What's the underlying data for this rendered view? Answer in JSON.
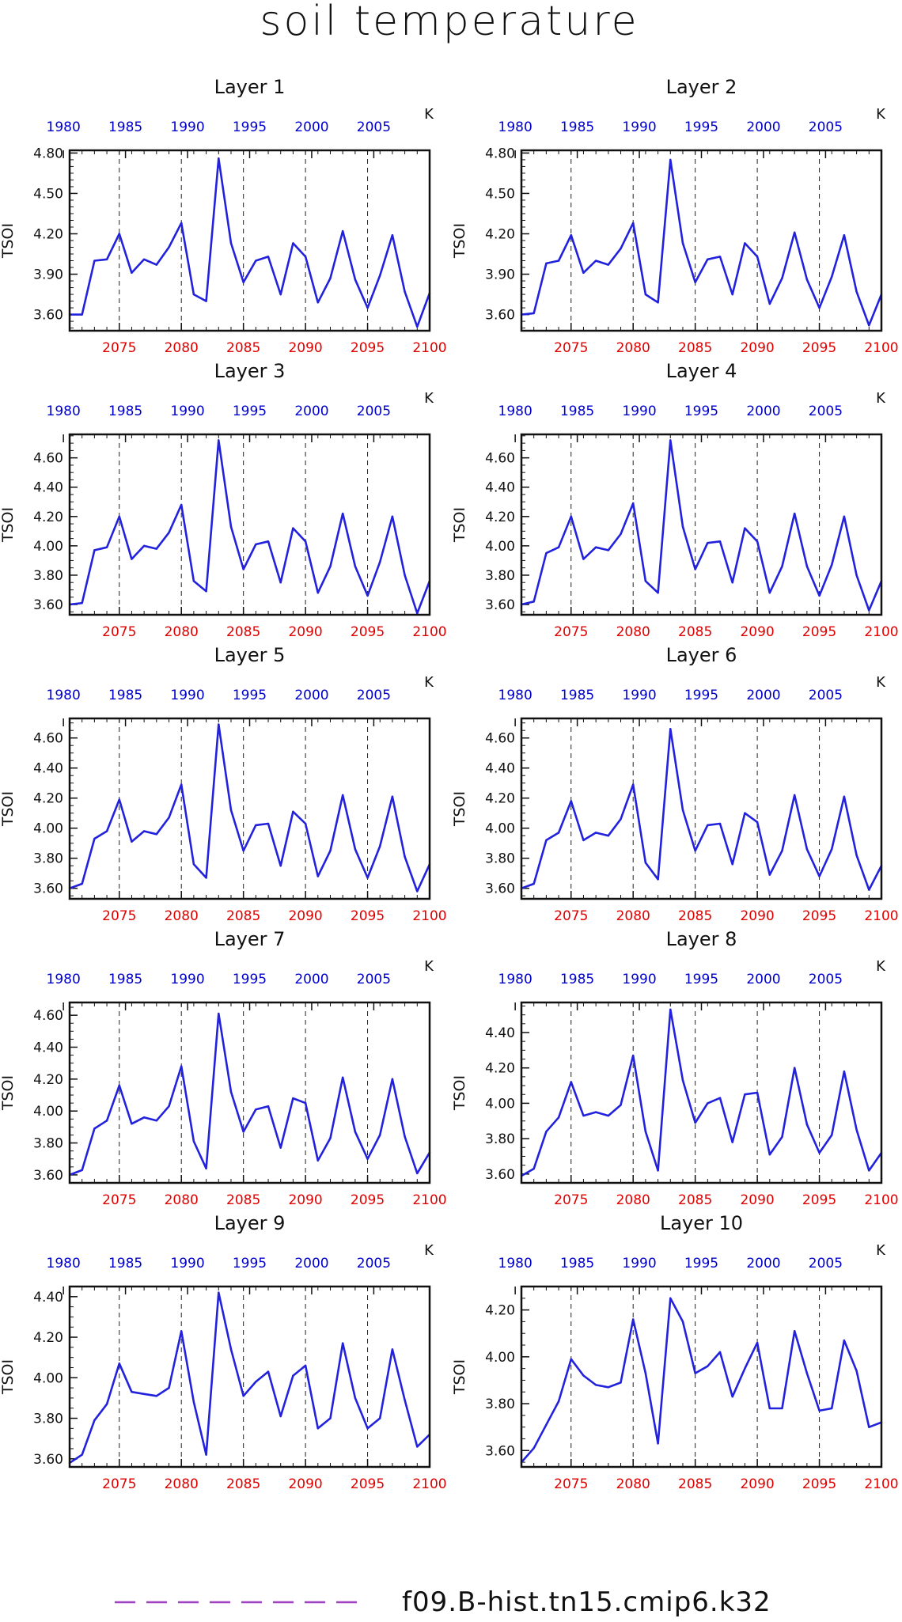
{
  "title": "soil temperature",
  "chart_data": {
    "type": "line",
    "layout": "5 rows x 2 columns",
    "grid": "vertical dashed lines at bottom-axis ticks",
    "ylabel": "TSOI",
    "units": "K",
    "bottom_axis_color": "#e00000",
    "top_axis_color": "#0000cc",
    "line_color": "#2222dd",
    "bottom_xlim": [
      2071,
      2100
    ],
    "bottom_ticks": [
      2075,
      2080,
      2085,
      2090,
      2095,
      2100
    ],
    "top_ticks": [
      1980,
      1985,
      1990,
      1995,
      2000,
      2005
    ],
    "x": [
      2071,
      2072,
      2073,
      2074,
      2075,
      2076,
      2077,
      2078,
      2079,
      2080,
      2081,
      2082,
      2083,
      2084,
      2085,
      2086,
      2087,
      2088,
      2089,
      2090,
      2091,
      2092,
      2093,
      2094,
      2095,
      2096,
      2097,
      2098,
      2099,
      2100
    ],
    "panels": [
      {
        "title": "Layer 1",
        "ylim": [
          3.48,
          4.82
        ],
        "yticks": [
          "3.60",
          "3.90",
          "4.20",
          "4.50",
          "4.80"
        ],
        "values": [
          3.6,
          3.6,
          4.0,
          4.01,
          4.2,
          3.91,
          4.01,
          3.97,
          4.1,
          4.28,
          3.75,
          3.7,
          4.76,
          4.13,
          3.84,
          4.0,
          4.03,
          3.75,
          4.13,
          4.03,
          3.69,
          3.87,
          4.22,
          3.86,
          3.65,
          3.89,
          4.19,
          3.77,
          3.51,
          3.76
        ]
      },
      {
        "title": "Layer 2",
        "ylim": [
          3.48,
          4.82
        ],
        "yticks": [
          "3.60",
          "3.90",
          "4.20",
          "4.50",
          "4.80"
        ],
        "values": [
          3.6,
          3.61,
          3.98,
          4.0,
          4.19,
          3.91,
          4.0,
          3.97,
          4.09,
          4.28,
          3.75,
          3.69,
          4.75,
          4.13,
          3.84,
          4.01,
          4.03,
          3.75,
          4.13,
          4.03,
          3.68,
          3.87,
          4.21,
          3.86,
          3.65,
          3.88,
          4.19,
          3.77,
          3.52,
          3.75
        ]
      },
      {
        "title": "Layer 3",
        "ylim": [
          3.53,
          4.76
        ],
        "yticks": [
          "3.60",
          "3.80",
          "4.00",
          "4.20",
          "4.40",
          "4.60"
        ],
        "values": [
          3.6,
          3.61,
          3.97,
          3.99,
          4.2,
          3.91,
          4.0,
          3.98,
          4.09,
          4.28,
          3.76,
          3.69,
          4.72,
          4.13,
          3.84,
          4.01,
          4.03,
          3.75,
          4.12,
          4.03,
          3.68,
          3.86,
          4.22,
          3.86,
          3.66,
          3.89,
          4.2,
          3.8,
          3.54,
          3.76
        ]
      },
      {
        "title": "Layer 4",
        "ylim": [
          3.53,
          4.76
        ],
        "yticks": [
          "3.60",
          "3.80",
          "4.00",
          "4.20",
          "4.40",
          "4.60"
        ],
        "values": [
          3.6,
          3.62,
          3.95,
          3.99,
          4.2,
          3.91,
          3.99,
          3.97,
          4.08,
          4.29,
          3.76,
          3.68,
          4.72,
          4.13,
          3.84,
          4.02,
          4.03,
          3.75,
          4.12,
          4.03,
          3.68,
          3.86,
          4.22,
          3.86,
          3.66,
          3.87,
          4.2,
          3.8,
          3.56,
          3.76
        ]
      },
      {
        "title": "Layer 5",
        "ylim": [
          3.53,
          4.73
        ],
        "yticks": [
          "3.60",
          "3.80",
          "4.00",
          "4.20",
          "4.40",
          "4.60"
        ],
        "values": [
          3.6,
          3.63,
          3.93,
          3.98,
          4.19,
          3.91,
          3.98,
          3.96,
          4.07,
          4.29,
          3.76,
          3.67,
          4.69,
          4.12,
          3.85,
          4.02,
          4.03,
          3.75,
          4.11,
          4.03,
          3.68,
          3.85,
          4.22,
          3.86,
          3.67,
          3.88,
          4.21,
          3.81,
          3.58,
          3.76
        ]
      },
      {
        "title": "Layer 6",
        "ylim": [
          3.53,
          4.73
        ],
        "yticks": [
          "3.60",
          "3.80",
          "4.00",
          "4.20",
          "4.40",
          "4.60"
        ],
        "values": [
          3.6,
          3.63,
          3.92,
          3.97,
          4.18,
          3.92,
          3.97,
          3.95,
          4.06,
          4.29,
          3.77,
          3.66,
          4.66,
          4.12,
          3.85,
          4.02,
          4.03,
          3.76,
          4.1,
          4.04,
          3.69,
          3.85,
          4.22,
          3.86,
          3.68,
          3.86,
          4.21,
          3.82,
          3.59,
          3.75
        ]
      },
      {
        "title": "Layer 7",
        "ylim": [
          3.55,
          4.68
        ],
        "yticks": [
          "3.60",
          "3.80",
          "4.00",
          "4.20",
          "4.40",
          "4.60"
        ],
        "values": [
          3.6,
          3.63,
          3.89,
          3.94,
          4.16,
          3.92,
          3.96,
          3.94,
          4.03,
          4.28,
          3.81,
          3.64,
          4.61,
          4.12,
          3.87,
          4.01,
          4.03,
          3.77,
          4.08,
          4.05,
          3.69,
          3.83,
          4.21,
          3.87,
          3.7,
          3.85,
          4.2,
          3.84,
          3.61,
          3.74
        ]
      },
      {
        "title": "Layer 8",
        "ylim": [
          3.55,
          4.57
        ],
        "yticks": [
          "3.60",
          "3.80",
          "4.00",
          "4.20",
          "4.40"
        ],
        "values": [
          3.59,
          3.63,
          3.84,
          3.92,
          4.12,
          3.93,
          3.95,
          3.93,
          3.99,
          4.27,
          3.84,
          3.62,
          4.53,
          4.13,
          3.89,
          4.0,
          4.03,
          3.78,
          4.05,
          4.06,
          3.71,
          3.81,
          4.2,
          3.88,
          3.72,
          3.82,
          4.18,
          3.85,
          3.62,
          3.72
        ]
      },
      {
        "title": "Layer 9",
        "ylim": [
          3.56,
          4.45
        ],
        "yticks": [
          "3.60",
          "3.80",
          "4.00",
          "4.20",
          "4.40"
        ],
        "values": [
          3.58,
          3.62,
          3.79,
          3.87,
          4.07,
          3.93,
          3.92,
          3.91,
          3.95,
          4.23,
          3.88,
          3.62,
          4.42,
          4.14,
          3.91,
          3.98,
          4.03,
          3.81,
          4.01,
          4.06,
          3.75,
          3.8,
          4.17,
          3.9,
          3.75,
          3.8,
          4.14,
          3.89,
          3.66,
          3.72
        ]
      },
      {
        "title": "Layer 10",
        "ylim": [
          3.53,
          4.3
        ],
        "yticks": [
          "3.60",
          "3.80",
          "4.00",
          "4.20"
        ],
        "values": [
          3.55,
          3.61,
          3.71,
          3.81,
          3.99,
          3.92,
          3.88,
          3.87,
          3.89,
          4.16,
          3.93,
          3.63,
          4.25,
          4.15,
          3.93,
          3.96,
          4.02,
          3.83,
          3.95,
          4.06,
          3.78,
          3.78,
          4.11,
          3.93,
          3.77,
          3.78,
          4.07,
          3.94,
          3.7,
          3.72
        ]
      }
    ],
    "legend": {
      "position": "bottom-center",
      "style": "dashed",
      "color": "#a040c0",
      "label": "f09.B-hist.tn15.cmip6.k32"
    }
  }
}
